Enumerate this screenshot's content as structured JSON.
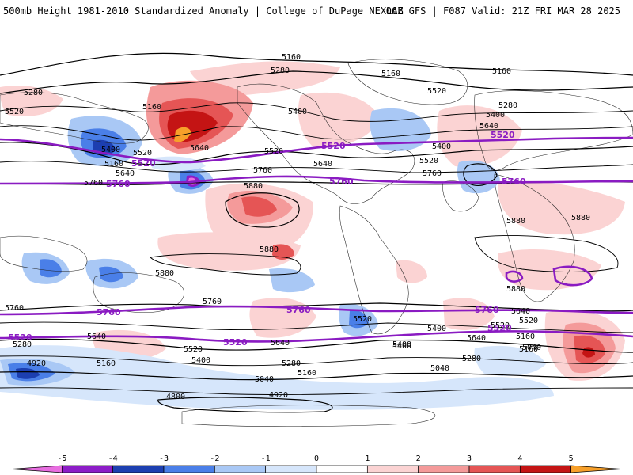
{
  "header": {
    "left_title": "500mb Height 1981-2010 Standardized Anomaly | College of DuPage NEXLAB",
    "right_title": "06Z GFS | F087 Valid: 21Z FRI MAR 28 2025"
  },
  "contour_labels": [
    "5160",
    "5280",
    "5160",
    "5160",
    "5280",
    "5520",
    "5160",
    "5400",
    "5640",
    "5520",
    "5640",
    "5760",
    "5400",
    "5520",
    "5640",
    "5400",
    "5520",
    "5160",
    "5400",
    "5280",
    "5640",
    "5520",
    "5760",
    "5760",
    "5880",
    "5880",
    "5880",
    "5880",
    "5880",
    "5880",
    "5760",
    "5760",
    "5640",
    "5520",
    "5400",
    "5280",
    "5160",
    "5640",
    "5520",
    "5400",
    "5160",
    "5280",
    "5040",
    "4920",
    "4800",
    "4920",
    "5640",
    "5520",
    "5400",
    "5640",
    "5520",
    "5400",
    "5280",
    "5160",
    "5040",
    "5160",
    "5040"
  ],
  "purple_labels": [
    "5520",
    "5520",
    "5520",
    "5760",
    "5760",
    "5760",
    "5760",
    "5760",
    "5760",
    "5520",
    "5520",
    "5520"
  ],
  "colorbar": {
    "ticks": [
      "-5",
      "-4",
      "-3",
      "-2",
      "-1",
      "0",
      "1",
      "2",
      "3",
      "4",
      "5"
    ],
    "colors": [
      "#e86ee0",
      "#8c1cc7",
      "#1c3fb0",
      "#4a7fe8",
      "#a9c8f5",
      "#d6e6fb",
      "#ffffff",
      "#fbd3d3",
      "#f49a9a",
      "#e55555",
      "#c41414",
      "#f7a02a"
    ]
  }
}
